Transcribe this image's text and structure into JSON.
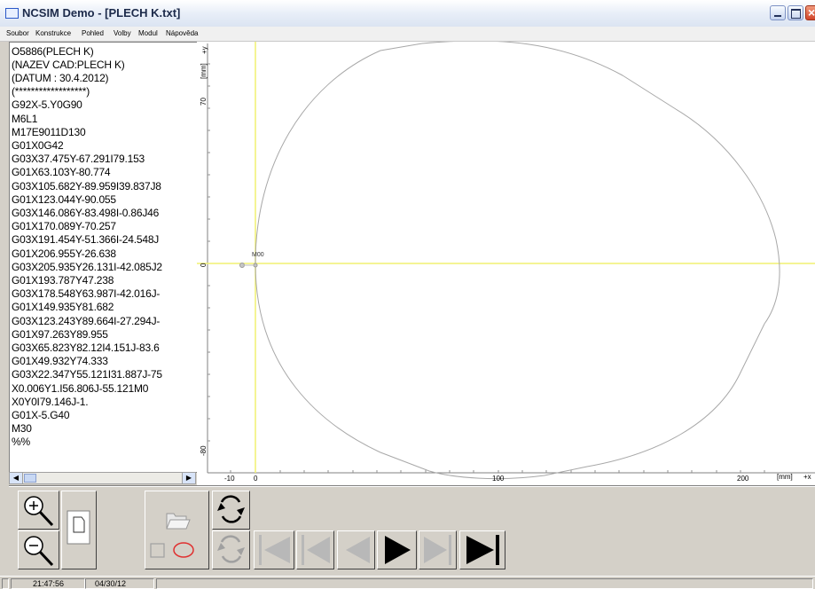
{
  "window": {
    "title": "NCSIM Demo - [PLECH K.txt]"
  },
  "menu": [
    {
      "label": "Soubor"
    },
    {
      "label": "Konstrukce"
    },
    {
      "label": "Pohled"
    },
    {
      "label": "Volby"
    },
    {
      "label": "Modul"
    },
    {
      "label": "Nápověda"
    }
  ],
  "code_lines": [
    "O5886(PLECH K)",
    "(NAZEV CAD:PLECH K)",
    "(DATUM : 30.4.2012)",
    "(******************)",
    "G92X-5.Y0G90",
    "M6L1",
    "M17E9011D130",
    "G01X0G42",
    "G03X37.475Y-67.291I79.153",
    "G01X63.103Y-80.774",
    "G03X105.682Y-89.959I39.837J8",
    "G01X123.044Y-90.055",
    "G03X146.086Y-83.498I-0.86J46",
    "G01X170.089Y-70.257",
    "G03X191.454Y-51.366I-24.548J",
    "G01X206.955Y-26.638",
    "G03X205.935Y26.131I-42.085J2",
    "G01X193.787Y47.238",
    "G03X178.548Y63.987I-42.016J-",
    "G01X149.935Y81.682",
    "G03X123.243Y89.664I-27.294J-",
    "G01X97.263Y89.955",
    "G03X65.823Y82.12I4.151J-83.6",
    "G01X49.932Y74.333",
    "G03X22.347Y55.121I31.887J-75",
    "X0.006Y1.I56.806J-55.121M0",
    "X0Y0I79.146J-1.",
    "G01X-5.G40",
    "M30",
    "%%"
  ],
  "plot": {
    "y_axis_label": "[mm]",
    "y_axis_arrow": "+y",
    "x_axis_label": "[mm]",
    "x_axis_arrow": "+x",
    "y_ticks": [
      "70",
      "0",
      "-80"
    ],
    "x_ticks": [
      "-10",
      "0",
      "100",
      "200"
    ],
    "marker_label": "M00",
    "crosshair_color": "#f0f070",
    "contour_color": "#a8a8a8"
  },
  "toolbar": {
    "zoom_in": "zoom-in",
    "zoom_out": "zoom-out",
    "page": "page",
    "open": "open-folder",
    "shapes": "rect-circle",
    "refresh": "refresh",
    "refresh_disabled": "refresh",
    "first": "skip-to-start",
    "prev": "step-back",
    "back": "play-back",
    "play": "play",
    "next": "step-forward",
    "last": "skip-to-end"
  },
  "status": {
    "time": "21:47:56",
    "date": "04/30/12"
  }
}
